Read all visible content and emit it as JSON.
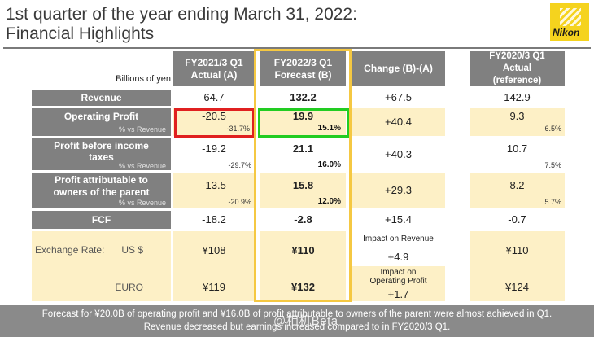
{
  "title": {
    "line1": "1st quarter of the year ending March 31, 2022:",
    "line2": "Financial Highlights"
  },
  "logo": {
    "text": "Nikon",
    "color": "#f5d31e"
  },
  "table": {
    "unit_label": "Billions of yen",
    "headers": {
      "fy2021": "FY2021/3 Q1\nActual (A)",
      "fy2022": "FY2022/3 Q1\nForecast (B)",
      "change": "Change (B)-(A)",
      "fy2020": "FY2020/3 Q1\nActual\n(reference)"
    },
    "rows": {
      "revenue": {
        "label": "Revenue",
        "a": "64.7",
        "b": "132.2",
        "change": "+67.5",
        "ref": "142.9"
      },
      "op_profit": {
        "label": "Operating Profit",
        "sub": "% vs Revenue",
        "a": "-20.5",
        "a_pct": "-31.7%",
        "b": "19.9",
        "b_pct": "15.1%",
        "change": "+40.4",
        "ref": "9.3",
        "ref_pct": "6.5%"
      },
      "pbt": {
        "label": "Profit before income taxes",
        "sub": "% vs Revenue",
        "a": "-19.2",
        "a_pct": "-29.7%",
        "b": "21.1",
        "b_pct": "16.0%",
        "change": "+40.3",
        "ref": "10.7",
        "ref_pct": "7.5%"
      },
      "owners": {
        "label": "Profit attributable to owners of the parent",
        "sub": "% vs Revenue",
        "a": "-13.5",
        "a_pct": "-20.9%",
        "b": "15.8",
        "b_pct": "12.0%",
        "change": "+29.3",
        "ref": "8.2",
        "ref_pct": "5.7%"
      },
      "fcf": {
        "label": "FCF",
        "a": "-18.2",
        "b": "-2.8",
        "change": "+15.4",
        "ref": "-0.7"
      },
      "fx_usd": {
        "label": "Exchange Rate:",
        "currency": "US $",
        "a": "¥108",
        "b": "¥110",
        "change_label": "Impact on Revenue",
        "change": "+4.9",
        "ref": "¥110"
      },
      "fx_euro": {
        "currency": "EURO",
        "a": "¥119",
        "b": "¥132",
        "change_label": "Impact on Operating Profit",
        "change": "+1.7",
        "ref": "¥124"
      }
    },
    "highlight_colors": {
      "red": "#e02020",
      "green": "#22cc22",
      "yellow": "#f5c842"
    }
  },
  "footer": {
    "line1": "Forecast for ¥20.0B of operating profit and ¥16.0B of profit attributable to owners of the parent were almost achieved in Q1.",
    "line2": "Revenue decreased but earnings increased compared to in FY2020/3 Q1."
  },
  "watermark": "@相机Beta"
}
